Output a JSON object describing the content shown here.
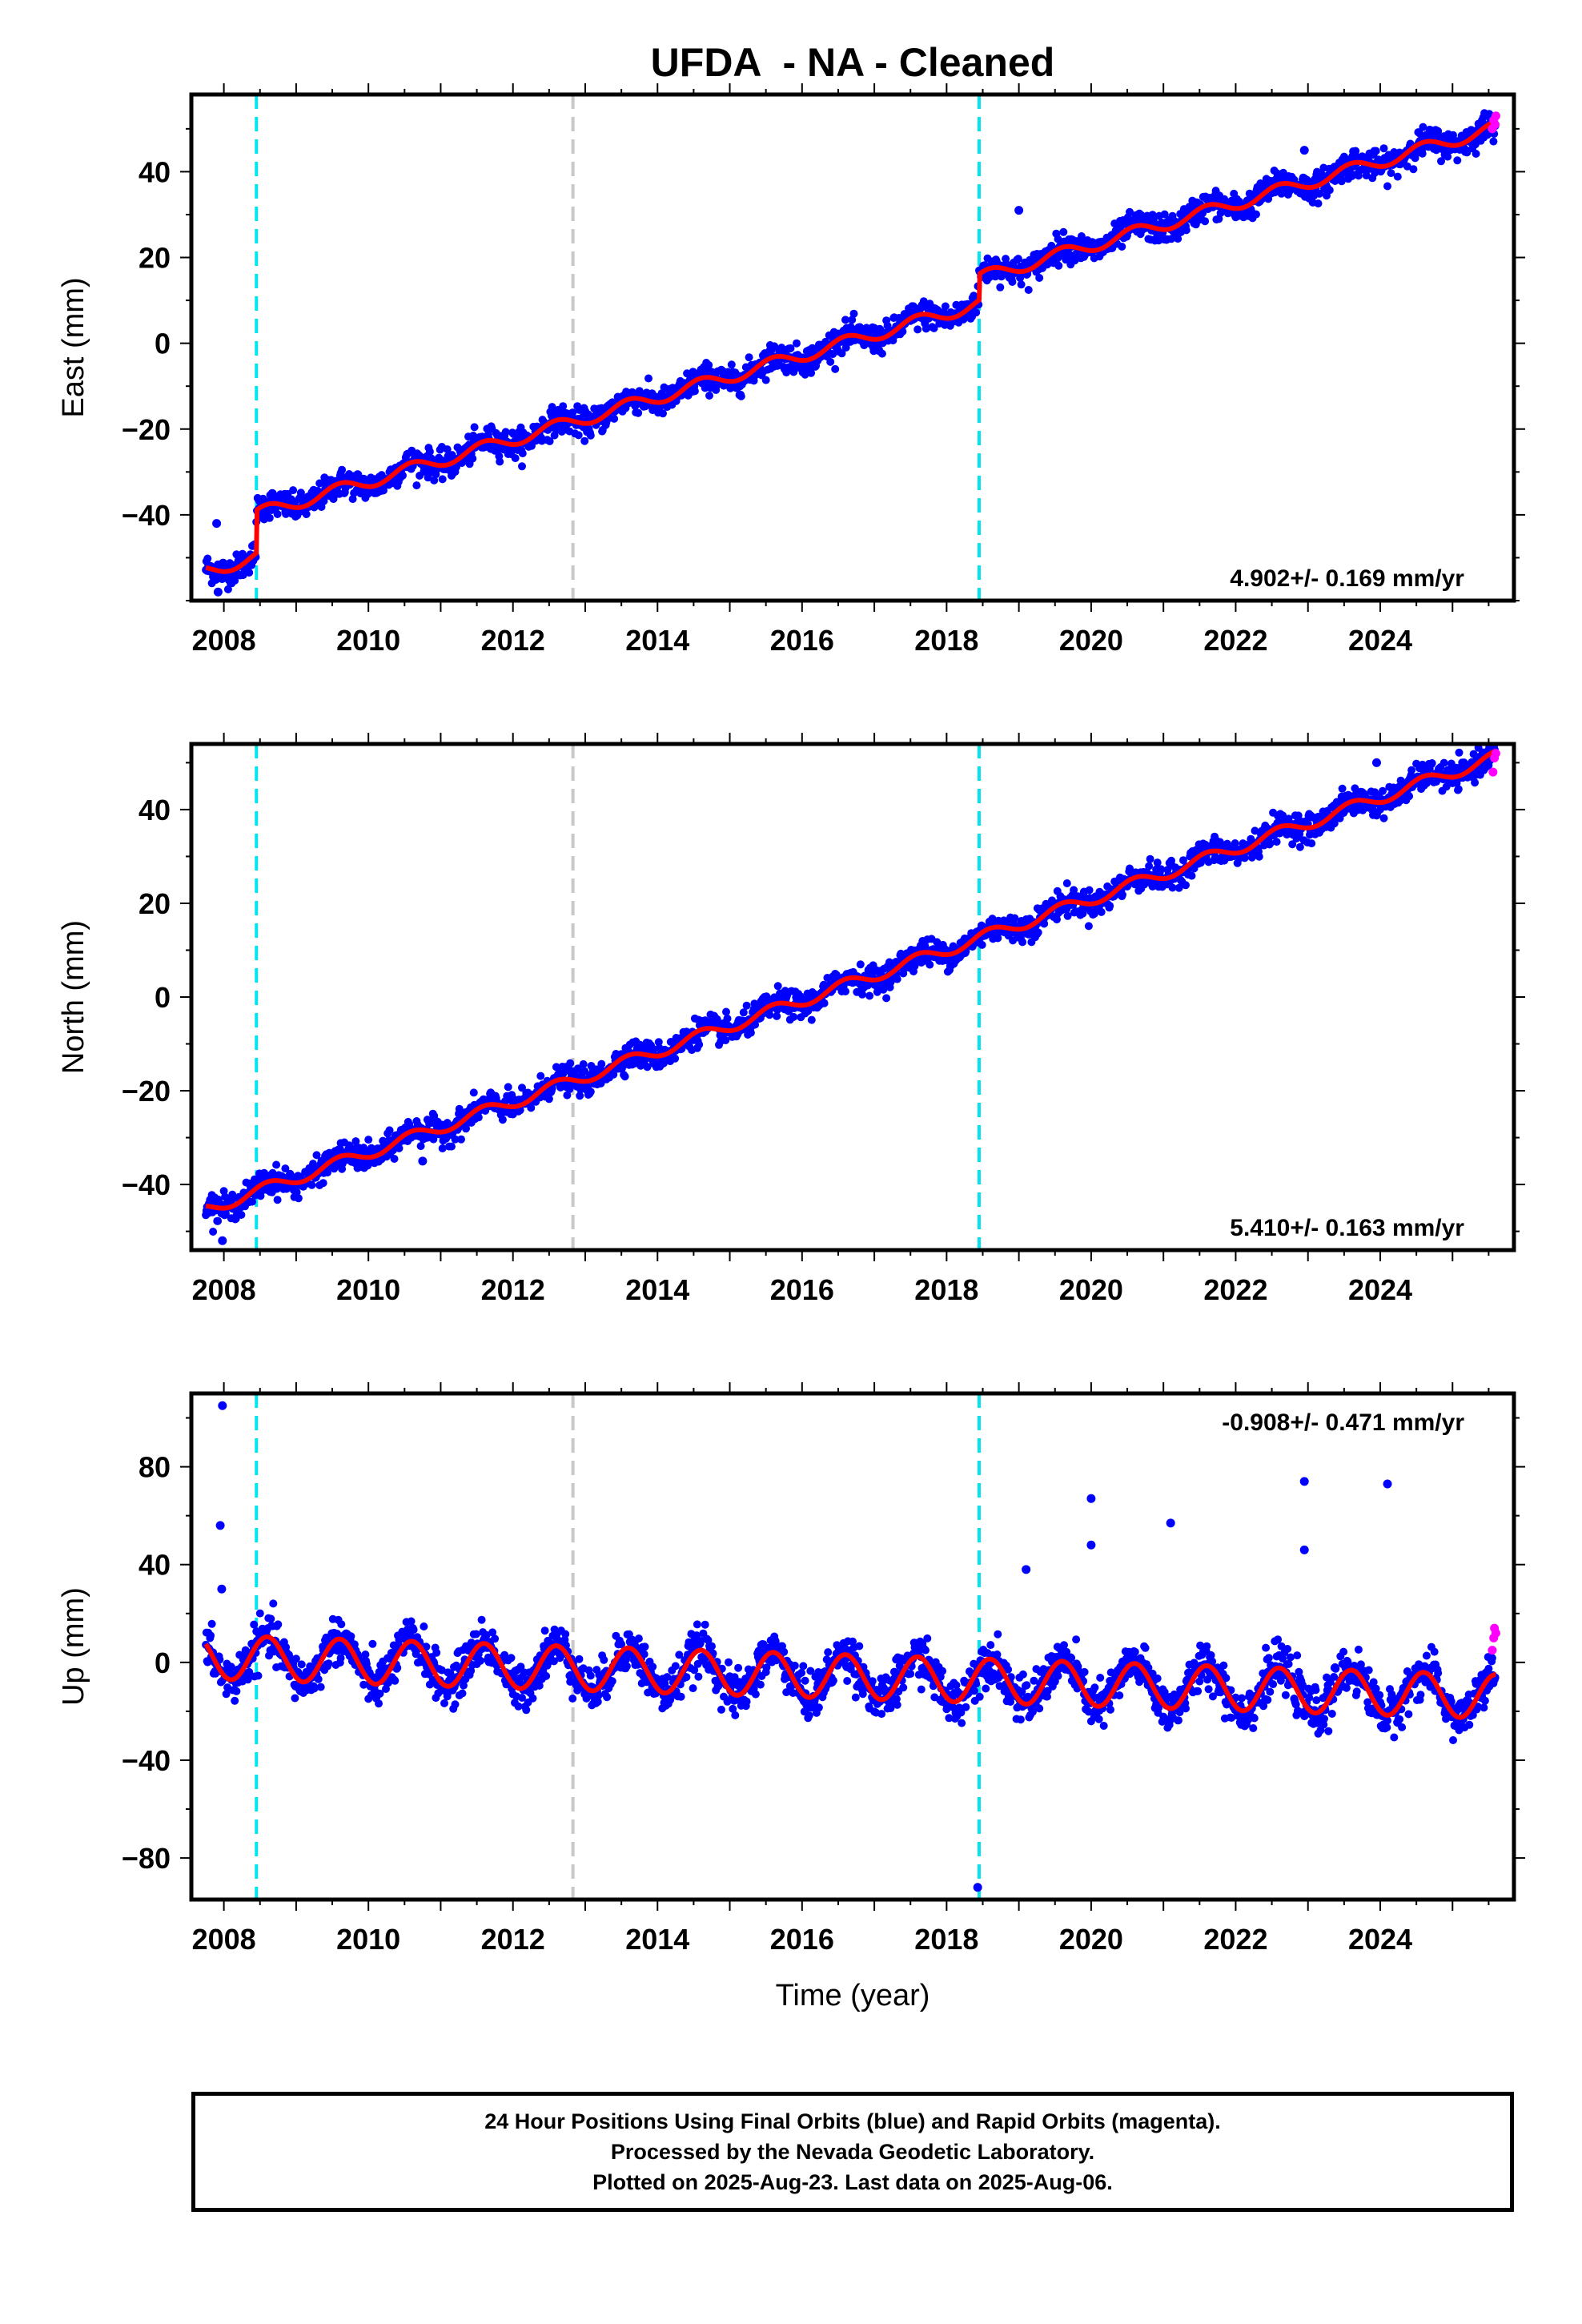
{
  "title": "UFDA  - NA - Cleaned",
  "footer": {
    "line1": "24 Hour Positions Using Final Orbits (blue) and Rapid Orbits (magenta).",
    "line2": "Processed by the Nevada Geodetic Laboratory.",
    "line3": "Plotted on 2025-Aug-23. Last data on 2025-Aug-06."
  },
  "colors": {
    "final_orbits": "#0000ff",
    "rapid_orbits": "#ff00ff",
    "model_fit": "#ff0000",
    "equipment_change": "#00e5ee",
    "other_event": "#c8c8c8"
  },
  "chart_data": [
    {
      "type": "scatter",
      "name": "east",
      "ylabel": "East (mm)",
      "xlabel": "",
      "xlim": [
        2007.55,
        2025.85
      ],
      "ylim": [
        -60,
        58
      ],
      "xticks": [
        2008,
        2010,
        2012,
        2014,
        2016,
        2018,
        2020,
        2022,
        2024
      ],
      "yticks": [
        -40,
        -20,
        0,
        20,
        40
      ],
      "rate_label": "4.902+/- 0.169 mm/yr",
      "rate_position": "bottom-right",
      "model": {
        "intercept_2008": -52,
        "rate": 4.902,
        "annual_amplitude": 1.5,
        "steps": [
          {
            "x": 2008.45,
            "size": 10
          },
          {
            "x": 2018.45,
            "size": 6
          }
        ]
      },
      "first_obs": 2007.75,
      "last_obs": 2025.6,
      "noise": 1.6,
      "outliers": [
        {
          "x": 2007.9,
          "y": -42
        },
        {
          "x": 2007.92,
          "y": -58
        },
        {
          "x": 2019.0,
          "y": 31
        },
        {
          "x": 2022.95,
          "y": 45
        }
      ],
      "rapid": [
        {
          "x": 2025.55,
          "y": 50
        },
        {
          "x": 2025.57,
          "y": 52
        },
        {
          "x": 2025.59,
          "y": 51
        },
        {
          "x": 2025.6,
          "y": 53
        }
      ]
    },
    {
      "type": "scatter",
      "name": "north",
      "ylabel": "North (mm)",
      "xlabel": "",
      "xlim": [
        2007.55,
        2025.85
      ],
      "ylim": [
        -54,
        54
      ],
      "xticks": [
        2008,
        2010,
        2012,
        2014,
        2016,
        2018,
        2020,
        2022,
        2024
      ],
      "yticks": [
        -40,
        -20,
        0,
        20,
        40
      ],
      "rate_label": "5.410+/- 0.163 mm/yr",
      "rate_position": "bottom-right",
      "model": {
        "intercept_2008": -44,
        "rate": 5.41,
        "annual_amplitude": 1.3,
        "steps": []
      },
      "first_obs": 2007.75,
      "last_obs": 2025.6,
      "noise": 1.4,
      "outliers": [
        {
          "x": 2007.98,
          "y": -52
        },
        {
          "x": 2010.75,
          "y": -35
        },
        {
          "x": 2023.95,
          "y": 50
        }
      ],
      "rapid": [
        {
          "x": 2025.56,
          "y": 48
        },
        {
          "x": 2025.58,
          "y": 51
        },
        {
          "x": 2025.6,
          "y": 52
        }
      ]
    },
    {
      "type": "scatter",
      "name": "up",
      "ylabel": "Up (mm)",
      "xlabel": "Time (year)",
      "xlim": [
        2007.55,
        2025.85
      ],
      "ylim": [
        -97,
        110
      ],
      "xticks": [
        2008,
        2010,
        2012,
        2014,
        2016,
        2018,
        2020,
        2022,
        2024
      ],
      "yticks": [
        -80,
        -40,
        0,
        40,
        80
      ],
      "rate_label": "-0.908+/- 0.471 mm/yr",
      "rate_position": "top-right",
      "model": {
        "intercept_2008": 2,
        "rate": -0.908,
        "annual_amplitude": 9,
        "steps": []
      },
      "first_obs": 2007.75,
      "last_obs": 2025.6,
      "noise": 4.5,
      "outliers": [
        {
          "x": 2007.98,
          "y": 105
        },
        {
          "x": 2007.95,
          "y": 56
        },
        {
          "x": 2007.97,
          "y": 30
        },
        {
          "x": 2018.43,
          "y": -92
        },
        {
          "x": 2019.1,
          "y": 38
        },
        {
          "x": 2020.0,
          "y": 67
        },
        {
          "x": 2020.0,
          "y": 48
        },
        {
          "x": 2021.1,
          "y": 57
        },
        {
          "x": 2022.95,
          "y": 74
        },
        {
          "x": 2022.95,
          "y": 46
        },
        {
          "x": 2024.1,
          "y": 73
        }
      ],
      "rapid": [
        {
          "x": 2025.55,
          "y": 5
        },
        {
          "x": 2025.57,
          "y": 10
        },
        {
          "x": 2025.58,
          "y": 14
        },
        {
          "x": 2025.6,
          "y": 12
        }
      ]
    }
  ],
  "events": [
    {
      "x": 2008.45,
      "kind": "equipment_change"
    },
    {
      "x": 2012.83,
      "kind": "other_event"
    },
    {
      "x": 2018.45,
      "kind": "equipment_change"
    }
  ]
}
